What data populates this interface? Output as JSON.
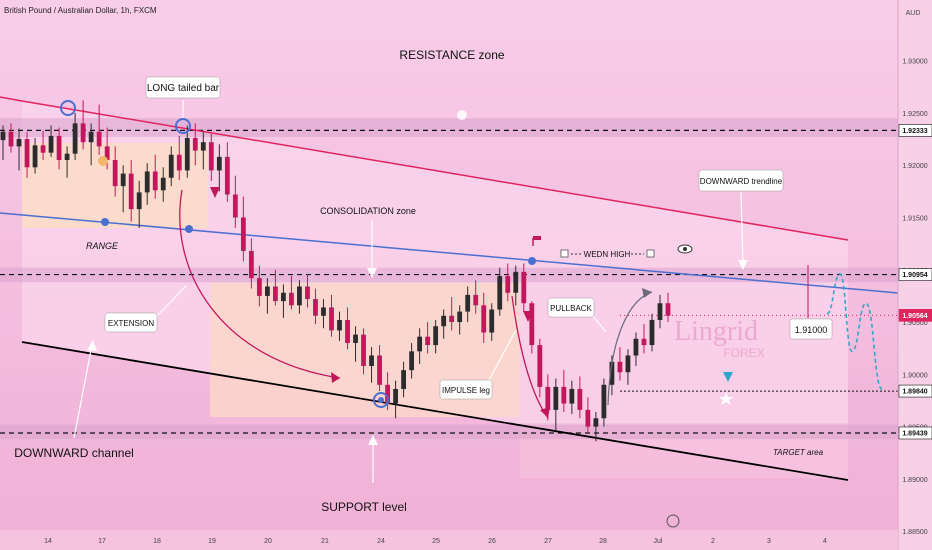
{
  "header": {
    "symbol_title": "British Pound / Australian Dollar, 1h, FXCM",
    "currency": "AUD"
  },
  "watermark": {
    "line1": "Lingrid",
    "line2": "FOREX"
  },
  "colors": {
    "background_top": "#f7c6e6",
    "background_bottom": "#f2b3d8",
    "zone_band": "#d9a3cc",
    "range_box": "#fbd9c4",
    "channel_fill": "#fbd3ea",
    "up_candle": "#2c2c2c",
    "down_candle": "#c2185b",
    "red_line": "#e0245e",
    "blue_line": "#4a6fd0",
    "black_line": "#000000",
    "arrow_red": "#c2185b",
    "arrow_gray": "#6b6b7a",
    "projection": "#2fa7c9"
  },
  "chart_data": {
    "type": "candlestick",
    "title": "British Pound / Australian Dollar, 1h, FXCM",
    "y_axis": {
      "currency": "AUD",
      "ylim": [
        1.8832,
        1.9358
      ],
      "ticks": [
        1.93,
        1.925,
        1.92,
        1.915,
        1.91,
        1.905,
        1.9,
        1.895,
        1.89,
        1.885
      ],
      "tick_labels": [
        "1.93000",
        "1.92500",
        "1.92000",
        "1.91500",
        "1.91000",
        "1.90500",
        "1.90000",
        "1.89500",
        "1.89000",
        "1.88500"
      ]
    },
    "x_axis": {
      "labels": [
        "14",
        "17",
        "18",
        "19",
        "20",
        "21",
        "24",
        "25",
        "26",
        "27",
        "28",
        "Jul",
        "2",
        "3",
        "4"
      ],
      "label_positions_index": [
        48,
        102,
        157,
        212,
        268,
        325,
        381,
        436,
        492,
        548,
        603,
        658,
        713,
        769,
        825
      ]
    },
    "price_levels": [
      {
        "label": "1.92333",
        "value": 1.92333,
        "style": "dashed"
      },
      {
        "label": "1.90954",
        "value": 1.90954,
        "style": "dashed"
      },
      {
        "label": "1.90564",
        "value": 1.90564,
        "style": "current",
        "color": "#c2185b"
      },
      {
        "label": "1.89840",
        "value": 1.8984,
        "style": "dotted"
      },
      {
        "label": "1.89439",
        "value": 1.89439,
        "style": "dashed"
      }
    ],
    "zones": [
      {
        "name": "resistance band",
        "from": 1.9227,
        "to": 1.9245
      },
      {
        "name": "middle band",
        "from": 1.9088,
        "to": 1.9102
      },
      {
        "name": "support band",
        "from": 1.8938,
        "to": 1.8952
      }
    ],
    "candles": [
      {
        "o": 1.9224,
        "h": 1.9238,
        "l": 1.9205,
        "c": 1.9232
      },
      {
        "o": 1.9232,
        "h": 1.924,
        "l": 1.9212,
        "c": 1.9218
      },
      {
        "o": 1.9218,
        "h": 1.9235,
        "l": 1.9195,
        "c": 1.9225
      },
      {
        "o": 1.9225,
        "h": 1.9232,
        "l": 1.9188,
        "c": 1.9198
      },
      {
        "o": 1.9198,
        "h": 1.9226,
        "l": 1.9192,
        "c": 1.9219
      },
      {
        "o": 1.9219,
        "h": 1.9233,
        "l": 1.9205,
        "c": 1.9212
      },
      {
        "o": 1.9212,
        "h": 1.9238,
        "l": 1.9208,
        "c": 1.9228
      },
      {
        "o": 1.9228,
        "h": 1.9236,
        "l": 1.9196,
        "c": 1.9205
      },
      {
        "o": 1.9205,
        "h": 1.9218,
        "l": 1.9188,
        "c": 1.9211
      },
      {
        "o": 1.9211,
        "h": 1.925,
        "l": 1.9205,
        "c": 1.924
      },
      {
        "o": 1.924,
        "h": 1.9262,
        "l": 1.9215,
        "c": 1.9222
      },
      {
        "o": 1.9222,
        "h": 1.924,
        "l": 1.92,
        "c": 1.9232
      },
      {
        "o": 1.9232,
        "h": 1.9258,
        "l": 1.921,
        "c": 1.9218
      },
      {
        "o": 1.9218,
        "h": 1.9236,
        "l": 1.9196,
        "c": 1.9205
      },
      {
        "o": 1.9205,
        "h": 1.9218,
        "l": 1.917,
        "c": 1.918
      },
      {
        "o": 1.918,
        "h": 1.92,
        "l": 1.9155,
        "c": 1.9192
      },
      {
        "o": 1.9192,
        "h": 1.9205,
        "l": 1.9146,
        "c": 1.9158
      },
      {
        "o": 1.9158,
        "h": 1.9185,
        "l": 1.914,
        "c": 1.9174
      },
      {
        "o": 1.9174,
        "h": 1.9202,
        "l": 1.9162,
        "c": 1.9194
      },
      {
        "o": 1.9194,
        "h": 1.921,
        "l": 1.9168,
        "c": 1.9176
      },
      {
        "o": 1.9176,
        "h": 1.9198,
        "l": 1.9165,
        "c": 1.9188
      },
      {
        "o": 1.9188,
        "h": 1.9218,
        "l": 1.918,
        "c": 1.921
      },
      {
        "o": 1.921,
        "h": 1.9228,
        "l": 1.9186,
        "c": 1.9195
      },
      {
        "o": 1.9195,
        "h": 1.9238,
        "l": 1.9188,
        "c": 1.9226
      },
      {
        "o": 1.9226,
        "h": 1.924,
        "l": 1.92,
        "c": 1.9214
      },
      {
        "o": 1.9214,
        "h": 1.9232,
        "l": 1.9196,
        "c": 1.9222
      },
      {
        "o": 1.9222,
        "h": 1.923,
        "l": 1.9185,
        "c": 1.9195
      },
      {
        "o": 1.9195,
        "h": 1.922,
        "l": 1.9175,
        "c": 1.9208
      },
      {
        "o": 1.9208,
        "h": 1.9222,
        "l": 1.9165,
        "c": 1.9172
      },
      {
        "o": 1.9172,
        "h": 1.919,
        "l": 1.914,
        "c": 1.915
      },
      {
        "o": 1.915,
        "h": 1.917,
        "l": 1.9108,
        "c": 1.9118
      },
      {
        "o": 1.9118,
        "h": 1.913,
        "l": 1.9082,
        "c": 1.9092
      },
      {
        "o": 1.9092,
        "h": 1.9104,
        "l": 1.9065,
        "c": 1.9075
      },
      {
        "o": 1.9075,
        "h": 1.9092,
        "l": 1.9058,
        "c": 1.9084
      },
      {
        "o": 1.9084,
        "h": 1.91,
        "l": 1.9066,
        "c": 1.907
      },
      {
        "o": 1.907,
        "h": 1.9086,
        "l": 1.9054,
        "c": 1.9078
      },
      {
        "o": 1.9078,
        "h": 1.9094,
        "l": 1.9062,
        "c": 1.9066
      },
      {
        "o": 1.9066,
        "h": 1.909,
        "l": 1.9058,
        "c": 1.9084
      },
      {
        "o": 1.9084,
        "h": 1.9096,
        "l": 1.9064,
        "c": 1.9072
      },
      {
        "o": 1.9072,
        "h": 1.9082,
        "l": 1.9048,
        "c": 1.9056
      },
      {
        "o": 1.9056,
        "h": 1.9072,
        "l": 1.9044,
        "c": 1.9064
      },
      {
        "o": 1.9064,
        "h": 1.9076,
        "l": 1.9036,
        "c": 1.9042
      },
      {
        "o": 1.9042,
        "h": 1.906,
        "l": 1.9032,
        "c": 1.9052
      },
      {
        "o": 1.9052,
        "h": 1.9064,
        "l": 1.9024,
        "c": 1.903
      },
      {
        "o": 1.903,
        "h": 1.9046,
        "l": 1.9012,
        "c": 1.9038
      },
      {
        "o": 1.9038,
        "h": 1.9044,
        "l": 1.9,
        "c": 1.9008
      },
      {
        "o": 1.9008,
        "h": 1.9026,
        "l": 1.8992,
        "c": 1.9018
      },
      {
        "o": 1.9018,
        "h": 1.9028,
        "l": 1.8984,
        "c": 1.899
      },
      {
        "o": 1.899,
        "h": 1.9002,
        "l": 1.8966,
        "c": 1.8972
      },
      {
        "o": 1.8972,
        "h": 1.8994,
        "l": 1.8958,
        "c": 1.8986
      },
      {
        "o": 1.8986,
        "h": 1.9012,
        "l": 1.8978,
        "c": 1.9004
      },
      {
        "o": 1.9004,
        "h": 1.903,
        "l": 1.8996,
        "c": 1.9022
      },
      {
        "o": 1.9022,
        "h": 1.9044,
        "l": 1.901,
        "c": 1.9036
      },
      {
        "o": 1.9036,
        "h": 1.905,
        "l": 1.902,
        "c": 1.9028
      },
      {
        "o": 1.9028,
        "h": 1.9052,
        "l": 1.902,
        "c": 1.9046
      },
      {
        "o": 1.9046,
        "h": 1.9062,
        "l": 1.9034,
        "c": 1.9056
      },
      {
        "o": 1.9056,
        "h": 1.9074,
        "l": 1.9042,
        "c": 1.905
      },
      {
        "o": 1.905,
        "h": 1.9066,
        "l": 1.9038,
        "c": 1.906
      },
      {
        "o": 1.906,
        "h": 1.9084,
        "l": 1.905,
        "c": 1.9076
      },
      {
        "o": 1.9076,
        "h": 1.909,
        "l": 1.9058,
        "c": 1.9066
      },
      {
        "o": 1.9066,
        "h": 1.9078,
        "l": 1.903,
        "c": 1.904
      },
      {
        "o": 1.904,
        "h": 1.9068,
        "l": 1.9032,
        "c": 1.9062
      },
      {
        "o": 1.9062,
        "h": 1.9102,
        "l": 1.9056,
        "c": 1.9094
      },
      {
        "o": 1.9094,
        "h": 1.9106,
        "l": 1.907,
        "c": 1.9078
      },
      {
        "o": 1.9078,
        "h": 1.9104,
        "l": 1.9066,
        "c": 1.9098
      },
      {
        "o": 1.9098,
        "h": 1.9106,
        "l": 1.906,
        "c": 1.9068
      },
      {
        "o": 1.9068,
        "h": 1.907,
        "l": 1.902,
        "c": 1.9028
      },
      {
        "o": 1.9028,
        "h": 1.9034,
        "l": 1.8978,
        "c": 1.8988
      },
      {
        "o": 1.8988,
        "h": 1.9,
        "l": 1.8956,
        "c": 1.8966
      },
      {
        "o": 1.8966,
        "h": 1.8996,
        "l": 1.8946,
        "c": 1.8988
      },
      {
        "o": 1.8988,
        "h": 1.9004,
        "l": 1.8964,
        "c": 1.8972
      },
      {
        "o": 1.8972,
        "h": 1.8994,
        "l": 1.8962,
        "c": 1.8986
      },
      {
        "o": 1.8986,
        "h": 1.8998,
        "l": 1.8958,
        "c": 1.8966
      },
      {
        "o": 1.8966,
        "h": 1.8978,
        "l": 1.8944,
        "c": 1.895
      },
      {
        "o": 1.895,
        "h": 1.8964,
        "l": 1.8936,
        "c": 1.8958
      },
      {
        "o": 1.8958,
        "h": 1.8996,
        "l": 1.895,
        "c": 1.899
      },
      {
        "o": 1.899,
        "h": 1.9018,
        "l": 1.898,
        "c": 1.9012
      },
      {
        "o": 1.9012,
        "h": 1.9026,
        "l": 1.8994,
        "c": 1.9002
      },
      {
        "o": 1.9002,
        "h": 1.9024,
        "l": 1.899,
        "c": 1.9018
      },
      {
        "o": 1.9018,
        "h": 1.904,
        "l": 1.9008,
        "c": 1.9034
      },
      {
        "o": 1.9034,
        "h": 1.9048,
        "l": 1.902,
        "c": 1.9028
      },
      {
        "o": 1.9028,
        "h": 1.9058,
        "l": 1.9022,
        "c": 1.9052
      },
      {
        "o": 1.9052,
        "h": 1.9076,
        "l": 1.9044,
        "c": 1.9068
      },
      {
        "o": 1.9068,
        "h": 1.9078,
        "l": 1.905,
        "c": 1.9056
      }
    ],
    "projection_path": [
      {
        "x_index": 827,
        "y": 1.9058
      },
      {
        "x_index": 840,
        "y": 1.9096
      },
      {
        "x_index": 852,
        "y": 1.9022
      },
      {
        "x_index": 866,
        "y": 1.9068
      },
      {
        "x_index": 882,
        "y": 1.8986
      }
    ]
  },
  "annotations": {
    "resistance": "RESISTANCE zone",
    "long_tailed": "LONG tailed bar",
    "consolidation": "CONSOLIDATION zone",
    "downward_trendline": "DOWNWARD trendline",
    "range": "RANGE",
    "wedn_high": "WEDN HIGH",
    "extension": "EXTENSION",
    "pullback": "PULLBACK",
    "impulse": "IMPULSE leg",
    "price_box": "1.91000",
    "downward_channel": "DOWNWARD channel",
    "target": "TARGET area",
    "support": "SUPPORT level"
  }
}
